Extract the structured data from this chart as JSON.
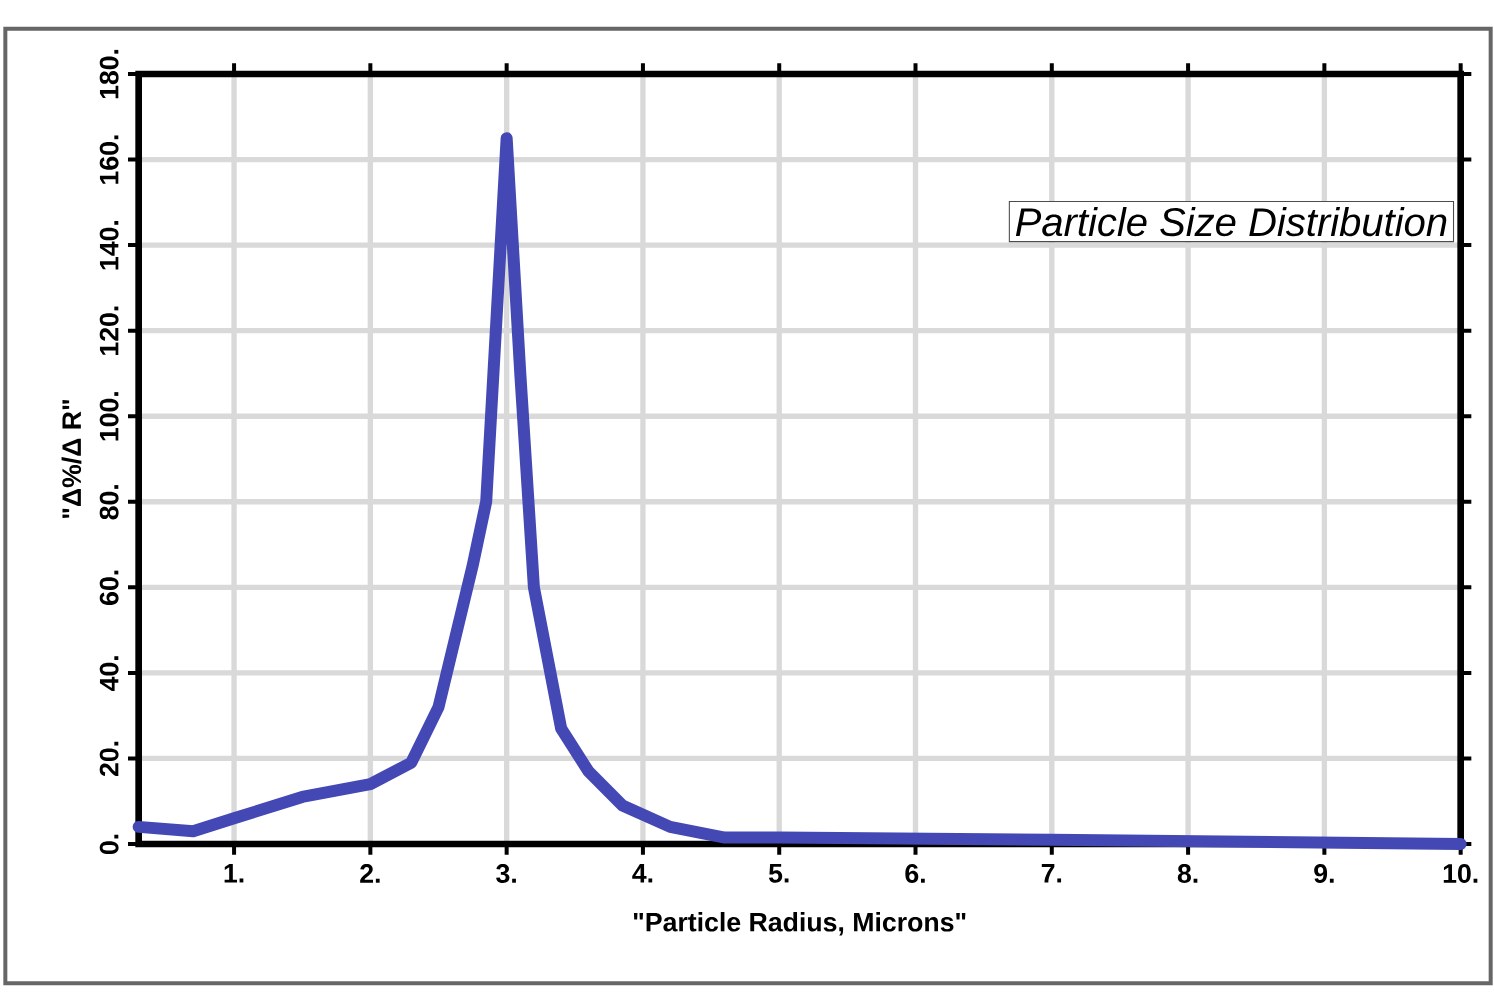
{
  "chart_data": {
    "type": "line",
    "title": "Particle Size Distribution",
    "xlabel": "\"Particle Radius, Microns\"",
    "ylabel": "\"Δ%/Δ R\"",
    "xlim": [
      0.3,
      10
    ],
    "ylim": [
      0,
      180
    ],
    "xticks": [
      {
        "value": 1,
        "label": "1."
      },
      {
        "value": 2,
        "label": "2."
      },
      {
        "value": 3,
        "label": "3."
      },
      {
        "value": 4,
        "label": "4."
      },
      {
        "value": 5,
        "label": "5."
      },
      {
        "value": 6,
        "label": "6."
      },
      {
        "value": 7,
        "label": "7."
      },
      {
        "value": 8,
        "label": "8."
      },
      {
        "value": 9,
        "label": "9."
      },
      {
        "value": 10,
        "label": "10."
      }
    ],
    "yticks": [
      {
        "value": 0,
        "label": "0."
      },
      {
        "value": 20,
        "label": "20."
      },
      {
        "value": 40,
        "label": "40."
      },
      {
        "value": 60,
        "label": "60."
      },
      {
        "value": 80,
        "label": "80."
      },
      {
        "value": 100,
        "label": "100."
      },
      {
        "value": 120,
        "label": "120."
      },
      {
        "value": 140,
        "label": "140."
      },
      {
        "value": 160,
        "label": "160."
      },
      {
        "value": 180,
        "label": "180."
      }
    ],
    "grid": true,
    "series": [
      {
        "color": "#4448b4",
        "x": [
          0.3,
          0.7,
          1.0,
          1.5,
          2.0,
          2.3,
          2.5,
          2.75,
          2.85,
          3.0,
          3.1,
          3.2,
          3.4,
          3.6,
          3.85,
          4.2,
          4.6,
          5.0,
          7.0,
          10.0
        ],
        "values": [
          4,
          3,
          6,
          11,
          14,
          19,
          32,
          65,
          80,
          165,
          110,
          60,
          27,
          17,
          9,
          4,
          1.5,
          1.5,
          1,
          0
        ]
      }
    ]
  }
}
